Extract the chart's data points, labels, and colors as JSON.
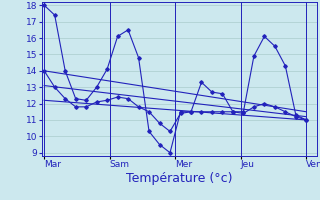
{
  "background_color": "#cce8ee",
  "grid_color": "#aacccc",
  "line_color": "#2222bb",
  "xlabel": "Température (°c)",
  "xlabel_fontsize": 9,
  "tick_fontsize": 6.5,
  "ylim": [
    8.8,
    18.2
  ],
  "yticks": [
    9,
    10,
    11,
    12,
    13,
    14,
    15,
    16,
    17,
    18
  ],
  "x_labels": [
    "Mar",
    "Sam",
    "Mer",
    "Jeu",
    "Ven"
  ],
  "day_vline_positions": [
    0,
    25,
    50,
    75,
    100
  ],
  "n_points_per_segment": 5,
  "series_high_y": [
    18.0,
    17.4,
    14.0,
    12.3,
    12.2,
    13.0,
    14.1,
    16.1,
    16.5,
    14.8,
    10.3,
    9.5,
    9.0,
    11.5,
    11.5,
    13.3,
    12.7,
    12.6,
    11.5,
    11.5,
    14.9,
    16.1,
    15.5,
    14.3,
    11.3,
    11.0
  ],
  "series_low_y": [
    14.0,
    13.0,
    12.3,
    11.8,
    11.8,
    12.1,
    12.2,
    12.4,
    12.3,
    11.8,
    11.5,
    10.8,
    10.3,
    11.4,
    11.5,
    11.5,
    11.5,
    11.5,
    11.5,
    11.4,
    11.8,
    12.0,
    11.8,
    11.5,
    11.2,
    11.0
  ],
  "trend1": [
    14.0,
    11.5
  ],
  "trend2": [
    12.2,
    11.0
  ],
  "trend3": [
    13.1,
    11.2
  ]
}
